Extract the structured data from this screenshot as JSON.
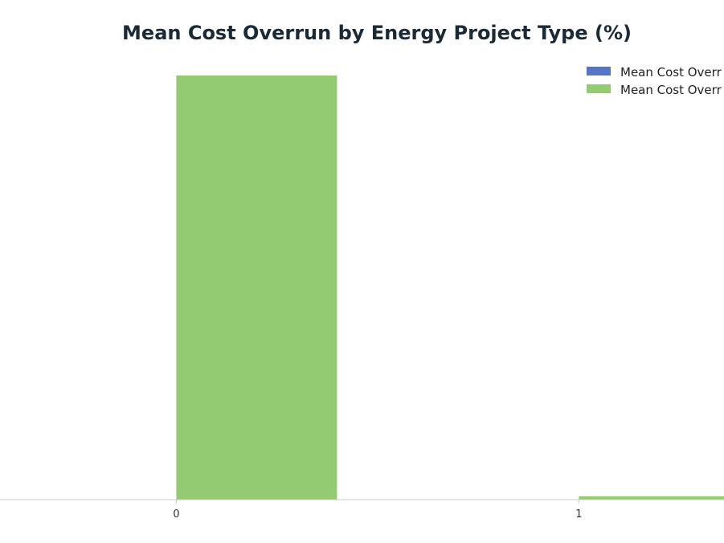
{
  "chart_data": {
    "type": "bar",
    "title": "Mean Cost Overrun by Energy Project Type (%)",
    "xlabel": "",
    "ylabel": "",
    "categories": [
      "0",
      "1"
    ],
    "ylim": [
      0,
      100
    ],
    "grid": false,
    "legend_position": "top-right",
    "series": [
      {
        "name": "Mean Cost Overr",
        "color": "#5874c8",
        "values": [
          0,
          0
        ]
      },
      {
        "name": "Mean Cost Overr",
        "color": "#93cb73",
        "values": [
          100,
          0.8
        ]
      }
    ]
  }
}
